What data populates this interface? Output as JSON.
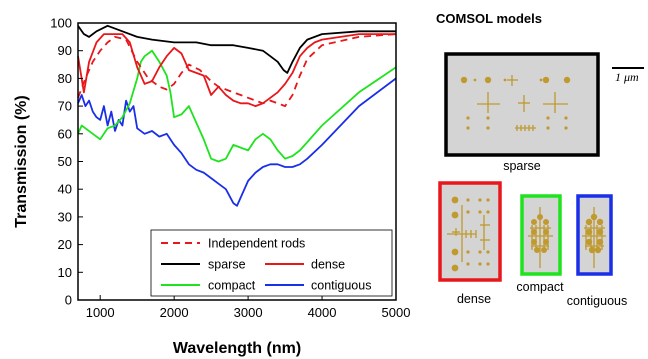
{
  "colors": {
    "sparse": "#000000",
    "dense": "#e8171b",
    "compact": "#1fe31f",
    "contiguous": "#1a2fe8",
    "independent": "#e8171b",
    "rod": "#c09a2e",
    "panel_bg": "#d4d4d4"
  },
  "chart_data": {
    "type": "line",
    "xlabel": "Wavelength (nm)",
    "ylabel": "Transmission (%)",
    "xlim": [
      700,
      5000
    ],
    "ylim": [
      0,
      100
    ],
    "xticks": [
      1000,
      2000,
      3000,
      4000,
      5000
    ],
    "yticks": [
      0,
      10,
      20,
      30,
      40,
      50,
      60,
      70,
      80,
      90,
      100
    ],
    "grid": false,
    "legend_position": "lower-center",
    "series": [
      {
        "name": "Independent rods",
        "style": "dashed",
        "x": [
          700,
          800,
          900,
          1000,
          1100,
          1200,
          1350,
          1500,
          1650,
          1800,
          1900,
          2000,
          2100,
          2200,
          2350,
          2500,
          2600,
          2700,
          2800,
          2900,
          3000,
          3100,
          3200,
          3300,
          3400,
          3500,
          3600,
          3700,
          3800,
          4000,
          4500,
          5000
        ],
        "y": [
          73,
          80,
          86,
          90,
          93,
          95,
          94,
          86,
          80,
          77,
          76,
          78,
          82,
          85,
          83,
          79,
          77,
          76,
          75,
          74,
          73,
          72,
          71,
          72,
          71,
          70,
          74,
          81,
          87,
          92,
          95,
          96
        ]
      },
      {
        "name": "sparse",
        "style": "solid",
        "x": [
          700,
          780,
          850,
          950,
          1100,
          1300,
          1500,
          1700,
          2000,
          2300,
          2500,
          2800,
          3000,
          3200,
          3300,
          3400,
          3480,
          3530,
          3600,
          3700,
          3800,
          4000,
          4500,
          5000
        ],
        "y": [
          99,
          96,
          95,
          97,
          99,
          97,
          95,
          94,
          93,
          93,
          92,
          92,
          91,
          90,
          88,
          86,
          83,
          82,
          86,
          91,
          94,
          96,
          97,
          97
        ]
      },
      {
        "name": "dense",
        "style": "solid",
        "x": [
          700,
          780,
          850,
          950,
          1050,
          1150,
          1300,
          1400,
          1500,
          1600,
          1700,
          1800,
          1900,
          2000,
          2100,
          2200,
          2300,
          2400,
          2500,
          2600,
          2700,
          2800,
          2900,
          3000,
          3100,
          3200,
          3300,
          3400,
          3500,
          3600,
          3700,
          3800,
          3900,
          4000,
          4500,
          5000
        ],
        "y": [
          88,
          75,
          86,
          93,
          96,
          96,
          96,
          93,
          84,
          78,
          79,
          84,
          88,
          91,
          89,
          83,
          82,
          81,
          74,
          77,
          74,
          72,
          71,
          71,
          70,
          71,
          73,
          75,
          78,
          82,
          88,
          91,
          93,
          94,
          96,
          96
        ]
      },
      {
        "name": "compact",
        "style": "solid",
        "x": [
          700,
          750,
          800,
          900,
          1000,
          1050,
          1100,
          1200,
          1300,
          1400,
          1500,
          1550,
          1600,
          1650,
          1700,
          1800,
          1900,
          1950,
          2000,
          2100,
          2200,
          2300,
          2400,
          2500,
          2600,
          2700,
          2800,
          2900,
          3000,
          3100,
          3200,
          3300,
          3400,
          3500,
          3600,
          3700,
          3800,
          4000,
          4500,
          5000
        ],
        "y": [
          60,
          63,
          62,
          60,
          58,
          60,
          62,
          63,
          66,
          71,
          80,
          86,
          88,
          89,
          90,
          86,
          81,
          75,
          66,
          67,
          70,
          64,
          58,
          51,
          50,
          51,
          56,
          55,
          54,
          58,
          60,
          58,
          54,
          51,
          52,
          54,
          57,
          63,
          75,
          84
        ]
      },
      {
        "name": "contiguous",
        "style": "solid",
        "x": [
          700,
          750,
          800,
          850,
          900,
          950,
          1000,
          1050,
          1100,
          1150,
          1200,
          1250,
          1300,
          1350,
          1400,
          1450,
          1500,
          1600,
          1700,
          1800,
          1900,
          2000,
          2100,
          2200,
          2300,
          2400,
          2500,
          2600,
          2700,
          2800,
          2850,
          2900,
          3000,
          3100,
          3200,
          3300,
          3400,
          3500,
          3600,
          3700,
          3800,
          4000,
          4500,
          5000
        ],
        "y": [
          71,
          74,
          70,
          72,
          68,
          66,
          65,
          70,
          63,
          68,
          61,
          65,
          63,
          72,
          68,
          70,
          62,
          60,
          61,
          59,
          60,
          56,
          53,
          49,
          47,
          46,
          44,
          42,
          40,
          35,
          34,
          37,
          43,
          46,
          48,
          49,
          49,
          48,
          48,
          49,
          51,
          56,
          70,
          80
        ]
      }
    ]
  },
  "legend": {
    "independent": "Independent rods",
    "sparse": "sparse",
    "dense": "dense",
    "compact": "compact",
    "contiguous": "contiguous"
  },
  "comsol": {
    "title": "COMSOL models",
    "scale_label": "1 μm",
    "panels": {
      "sparse": "sparse",
      "dense": "dense",
      "compact": "compact",
      "contiguous": "contiguous"
    }
  }
}
